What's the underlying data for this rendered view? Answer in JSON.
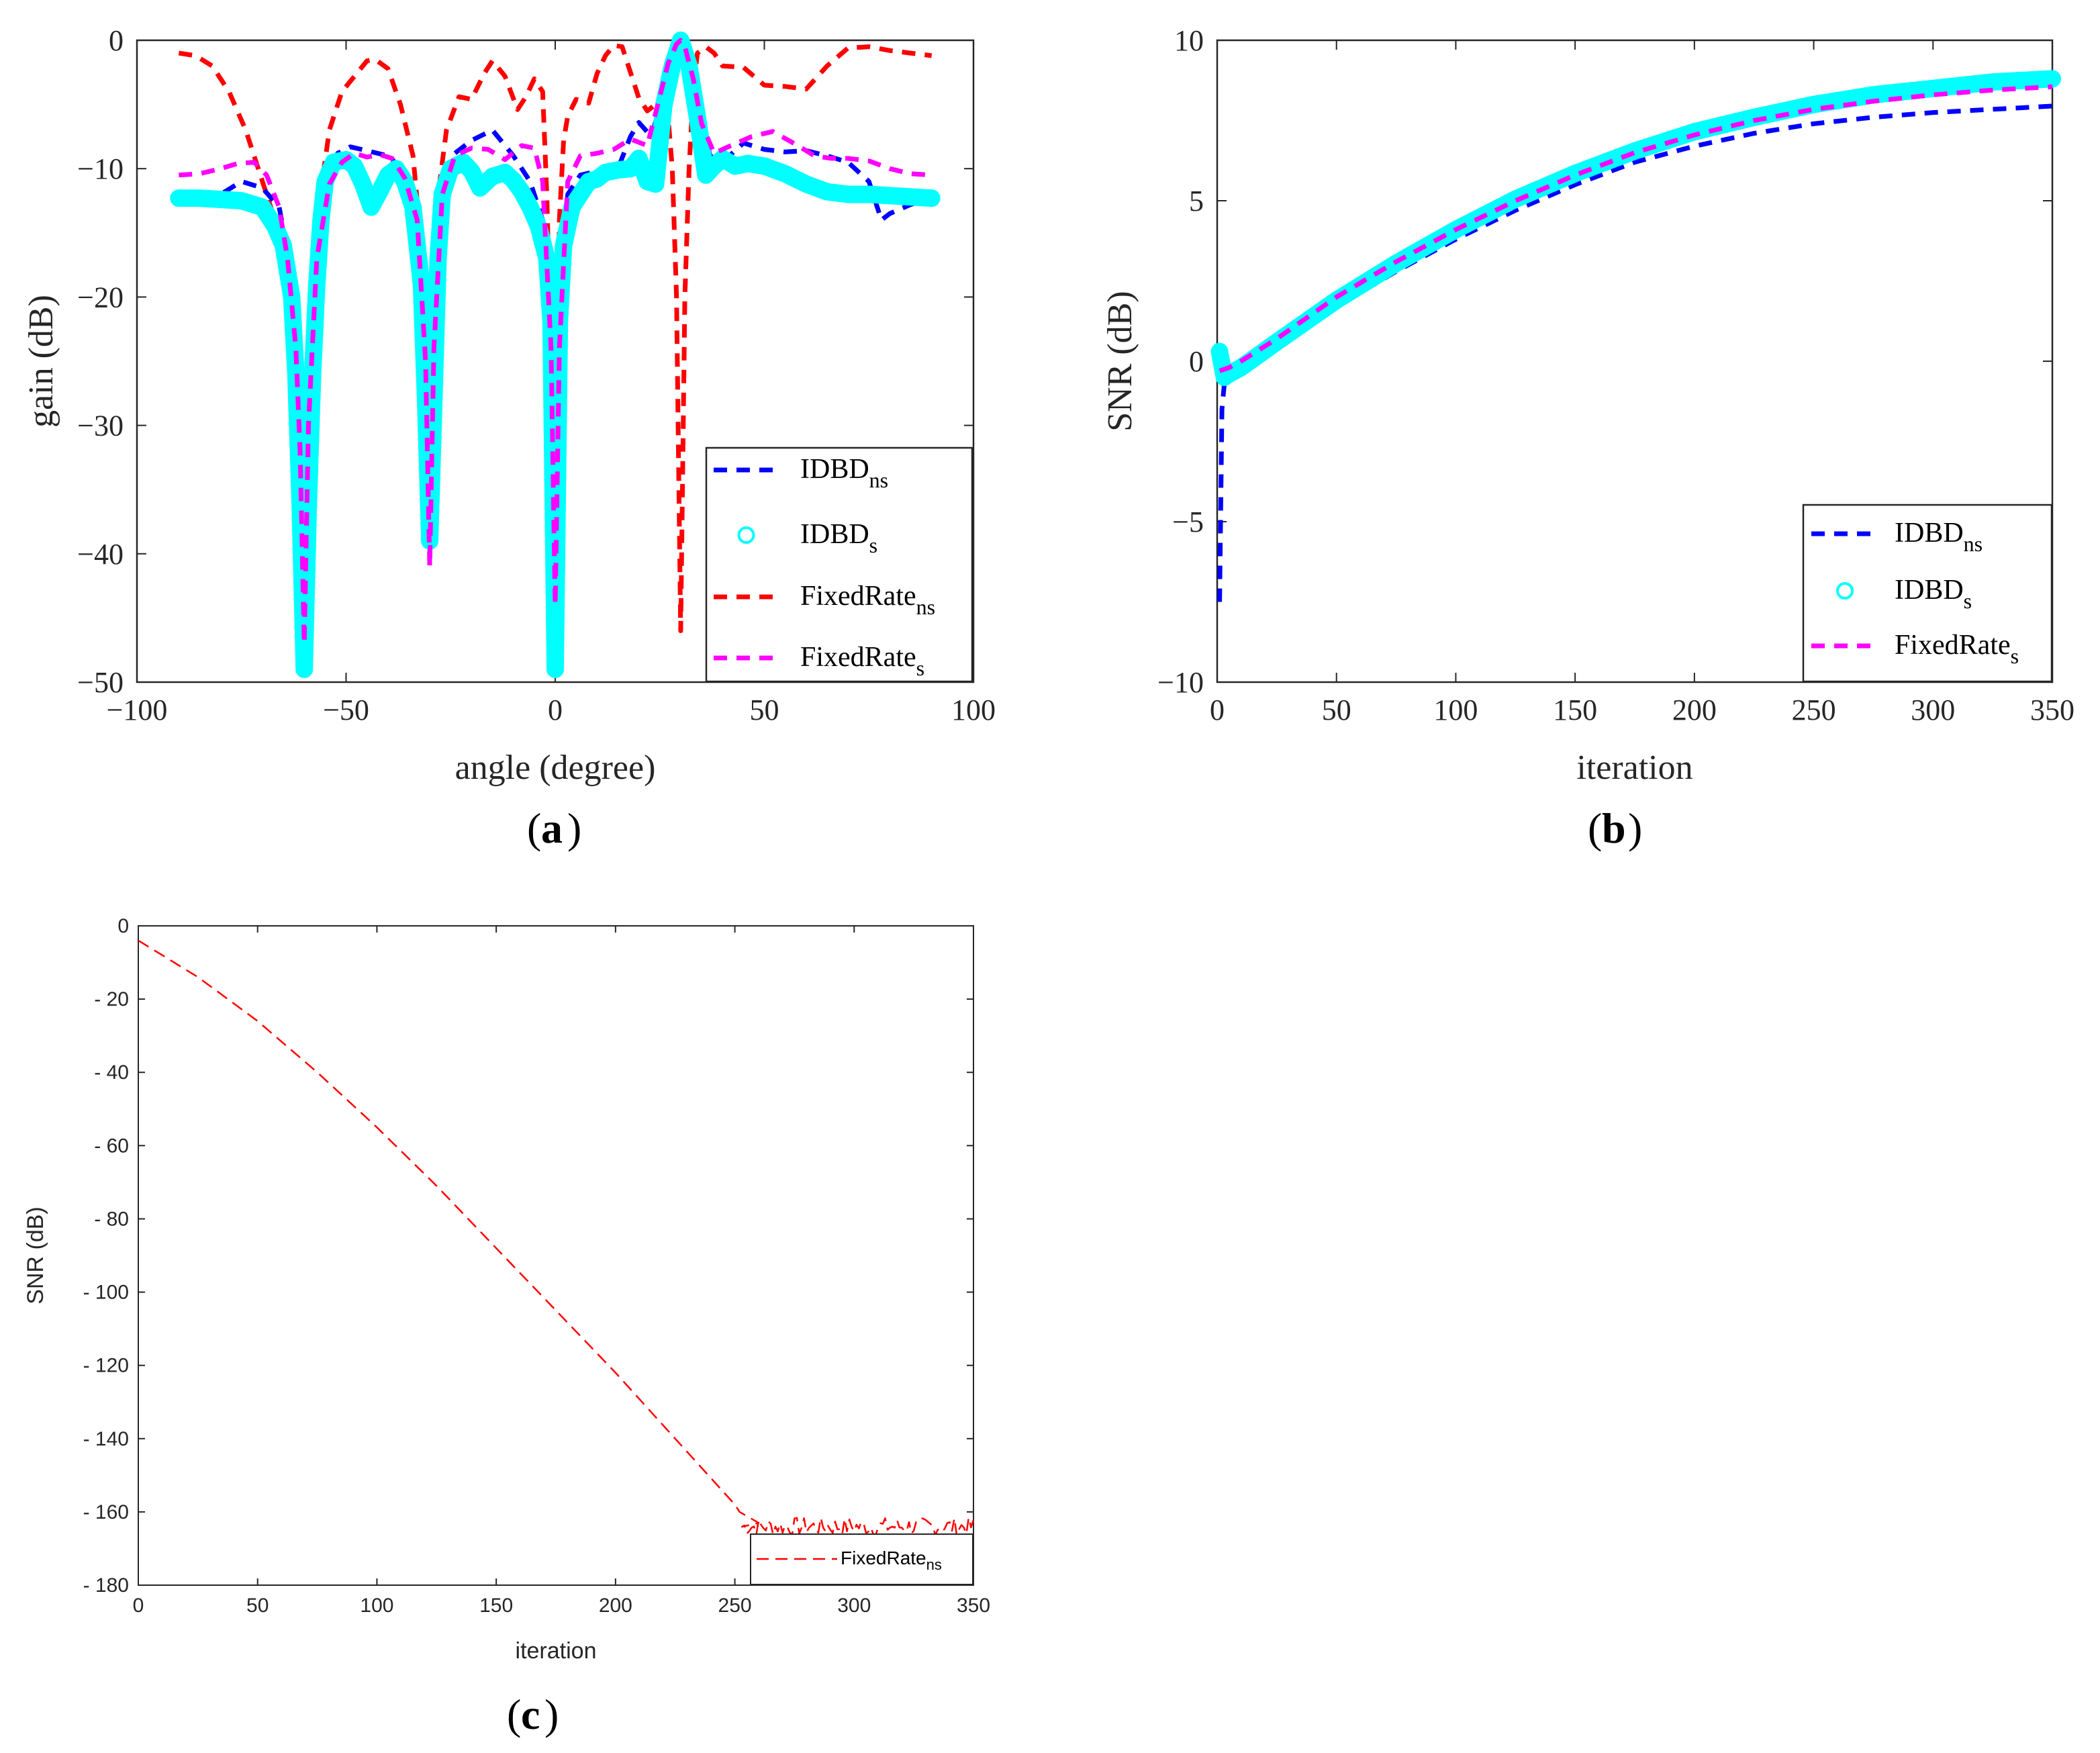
{
  "chart_data": [
    {
      "id": "a",
      "panel_label": "a",
      "type": "line",
      "xlabel": "angle (degree)",
      "ylabel": "gain (dB)",
      "xlim": [
        -100,
        100
      ],
      "ylim": [
        -50,
        0
      ],
      "xticks": [
        "−100",
        "−50",
        "0",
        "50",
        "100"
      ],
      "xtick_values": [
        -100,
        -50,
        0,
        50,
        100
      ],
      "yticks": [
        "0",
        "−10",
        "−20",
        "−30",
        "−40",
        "−50"
      ],
      "ytick_values": [
        0,
        -10,
        -20,
        -30,
        -40,
        -50
      ],
      "legend_position": "bottom-right",
      "series": [
        {
          "name": "IDBD",
          "sub": "ns",
          "color": "#0000ff",
          "style": "dashed",
          "x": [
            -90,
            -80,
            -75,
            -70,
            -66,
            -63,
            -61,
            -60,
            -59,
            -57,
            -55,
            -52,
            -49,
            -45,
            -40,
            -36,
            -33,
            -31,
            -30,
            -29,
            -27,
            -24,
            -20,
            -15,
            -10,
            -6,
            -3,
            -1,
            0,
            1,
            3,
            6,
            10,
            15,
            18,
            20,
            23,
            26,
            28,
            30,
            32,
            34,
            37,
            40,
            45,
            50,
            55,
            60,
            65,
            70,
            75,
            78,
            80,
            85,
            90
          ],
          "y": [
            -12.3,
            -12,
            -11,
            -11.5,
            -13,
            -18,
            -28,
            -44,
            -28,
            -16,
            -11,
            -8.8,
            -8.3,
            -8.6,
            -9,
            -10.2,
            -13.5,
            -24,
            -38,
            -22,
            -12,
            -8.8,
            -7.8,
            -7,
            -9,
            -11,
            -14,
            -22,
            -42,
            -22,
            -12,
            -10.5,
            -10.2,
            -10,
            -7.5,
            -6.4,
            -7.5,
            -4,
            -1.5,
            -0.2,
            -1.5,
            -4,
            -9,
            -9.5,
            -8,
            -8.5,
            -8.7,
            -8.6,
            -9,
            -9.5,
            -11,
            -14,
            -13.5,
            -12.8,
            -12.3
          ]
        },
        {
          "name": "IDBD",
          "sub": "s",
          "color": "#00ffff",
          "style": "markers",
          "x": [
            -90,
            -85,
            -80,
            -75,
            -70,
            -67,
            -65,
            -63,
            -62,
            -61,
            -60,
            -59,
            -58,
            -57,
            -56,
            -55,
            -53,
            -50,
            -48,
            -46,
            -44,
            -42,
            -40,
            -38,
            -36,
            -34,
            -32,
            -31,
            -30,
            -29,
            -28,
            -27,
            -25,
            -22,
            -20,
            -18,
            -15,
            -12,
            -10,
            -8,
            -6,
            -4,
            -2,
            -1,
            0,
            1,
            2,
            4,
            6,
            8,
            10,
            12,
            15,
            18,
            20,
            22,
            24,
            26,
            28,
            30,
            32,
            34,
            36,
            38,
            40,
            43,
            46,
            50,
            55,
            60,
            65,
            70,
            75,
            80,
            85,
            90
          ],
          "y": [
            -12.3,
            -12.3,
            -12.4,
            -12.5,
            -13,
            -14.5,
            -16,
            -20,
            -26,
            -36,
            -49,
            -36,
            -26,
            -19,
            -14,
            -11,
            -9.5,
            -9.3,
            -9.8,
            -11.2,
            -13,
            -11.8,
            -10.5,
            -10,
            -11,
            -13,
            -19,
            -28,
            -39,
            -28,
            -17,
            -12,
            -10,
            -9.5,
            -10.2,
            -11.5,
            -10.6,
            -10.3,
            -10.9,
            -11.8,
            -13,
            -14.5,
            -17,
            -22,
            -49,
            -22,
            -16,
            -13,
            -12,
            -11,
            -10.8,
            -10.3,
            -10.1,
            -10,
            -9.2,
            -11,
            -11.2,
            -5,
            -2,
            0,
            -2,
            -6,
            -10.5,
            -9.8,
            -9.2,
            -9.8,
            -9.6,
            -9.8,
            -10.4,
            -11.2,
            -11.8,
            -12,
            -12,
            -12.1,
            -12.2,
            -12.3
          ]
        },
        {
          "name": "FixedRate",
          "sub": "ns",
          "color": "#ff0000",
          "style": "dashed",
          "x": [
            -90,
            -86,
            -82,
            -78,
            -74,
            -70,
            -67,
            -65,
            -63,
            -61,
            -60,
            -59,
            -57,
            -54,
            -51,
            -48,
            -45,
            -43,
            -40,
            -37,
            -34,
            -32,
            -31,
            -30,
            -29,
            -28,
            -26,
            -23,
            -20,
            -17,
            -15,
            -12,
            -9,
            -7,
            -5,
            -3,
            -2,
            -1,
            0,
            1,
            2,
            3,
            5,
            8,
            10,
            12,
            14,
            16,
            18,
            20,
            22,
            24,
            26,
            27,
            28,
            29,
            30,
            31,
            32,
            33,
            34,
            36,
            38,
            40,
            45,
            50,
            55,
            60,
            65,
            70,
            75,
            80,
            85,
            90
          ],
          "y": [
            -1,
            -1.2,
            -2,
            -4,
            -7,
            -11,
            -14,
            -18,
            -24,
            -36,
            -46,
            -30,
            -14,
            -7,
            -4,
            -2.8,
            -1.6,
            -1.5,
            -2.2,
            -5,
            -9,
            -16,
            -28,
            -40,
            -24,
            -12,
            -7,
            -4.4,
            -4.6,
            -2.6,
            -1.6,
            -2.8,
            -5.4,
            -4.4,
            -3,
            -4,
            -12,
            -25,
            -40,
            -14,
            -7.8,
            -5.9,
            -4.6,
            -4.9,
            -2.6,
            -1.2,
            -0.4,
            -0.5,
            -2.5,
            -4.5,
            -5.5,
            -5,
            -3.9,
            -6,
            -10,
            -20,
            -46,
            -20,
            -10,
            -3.8,
            -1,
            -0.5,
            -1,
            -2,
            -2.1,
            -3.5,
            -3.6,
            -3.8,
            -2,
            -0.6,
            -0.5,
            -0.8,
            -1,
            -1.2
          ]
        },
        {
          "name": "FixedRate",
          "sub": "s",
          "color": "#ff00ff",
          "style": "dashed",
          "x": [
            -90,
            -85,
            -80,
            -76,
            -72,
            -69,
            -66,
            -64,
            -62,
            -61,
            -60,
            -59,
            -57,
            -54,
            -51,
            -48,
            -45,
            -42,
            -39,
            -36,
            -33,
            -31,
            -30,
            -29,
            -27,
            -24,
            -20,
            -16,
            -12,
            -8,
            -5,
            -3,
            -1,
            0,
            1,
            3,
            6,
            10,
            14,
            18,
            22,
            25,
            27,
            29,
            30,
            31,
            33,
            35,
            38,
            42,
            47,
            52,
            58,
            62,
            66,
            70,
            75,
            80,
            85,
            90
          ],
          "y": [
            -10.5,
            -10.4,
            -10,
            -9.6,
            -9.5,
            -10.5,
            -13,
            -17,
            -24,
            -32,
            -47,
            -30,
            -17,
            -11.2,
            -9.5,
            -8.8,
            -9.1,
            -8.9,
            -9.2,
            -10.7,
            -14,
            -25,
            -41,
            -24,
            -12,
            -9,
            -8.4,
            -8.5,
            -9.3,
            -8.2,
            -8.4,
            -11,
            -24,
            -44,
            -24,
            -11,
            -9,
            -8.8,
            -8.5,
            -7.7,
            -8.2,
            -4.4,
            -1.8,
            -0.3,
            0,
            -0.5,
            -3,
            -6.5,
            -8.8,
            -8.2,
            -7.5,
            -7.1,
            -8.2,
            -9,
            -9.2,
            -9.2,
            -9.4,
            -10,
            -10.4,
            -10.5
          ]
        }
      ]
    },
    {
      "id": "b",
      "panel_label": "b",
      "type": "line",
      "xlabel": "iteration",
      "ylabel": "SNR (dB)",
      "xlim": [
        0,
        350
      ],
      "ylim": [
        -10,
        10
      ],
      "xticks": [
        "0",
        "50",
        "100",
        "150",
        "200",
        "250",
        "300",
        "350"
      ],
      "xtick_values": [
        0,
        50,
        100,
        150,
        200,
        250,
        300,
        350
      ],
      "yticks": [
        "10",
        "5",
        "0",
        "−5",
        "−10"
      ],
      "ytick_values": [
        10,
        5,
        0,
        -5,
        -10
      ],
      "legend_position": "bottom-right",
      "series": [
        {
          "name": "IDBD",
          "sub": "ns",
          "color": "#0000ff",
          "style": "dashed",
          "x": [
            1,
            2,
            3,
            5,
            10,
            25,
            50,
            75,
            100,
            125,
            150,
            175,
            200,
            225,
            250,
            275,
            300,
            325,
            350
          ],
          "y": [
            -7.5,
            -1.5,
            -0.7,
            -0.5,
            -0.3,
            0.4,
            1.7,
            2.8,
            3.8,
            4.7,
            5.5,
            6.2,
            6.7,
            7.1,
            7.4,
            7.6,
            7.75,
            7.85,
            7.95
          ]
        },
        {
          "name": "IDBD",
          "sub": "s",
          "color": "#00ffff",
          "style": "markers",
          "x": [
            1,
            3,
            5,
            10,
            25,
            50,
            75,
            100,
            125,
            150,
            175,
            200,
            225,
            250,
            275,
            300,
            325,
            350
          ],
          "y": [
            0.3,
            -0.5,
            -0.4,
            -0.2,
            0.6,
            1.9,
            3.05,
            4.1,
            5.05,
            5.85,
            6.55,
            7.15,
            7.6,
            8,
            8.3,
            8.5,
            8.7,
            8.8
          ]
        },
        {
          "name": "FixedRate",
          "sub": "s",
          "color": "#ff00ff",
          "style": "dashed",
          "x": [
            1,
            5,
            10,
            25,
            50,
            75,
            100,
            125,
            150,
            175,
            200,
            225,
            250,
            275,
            300,
            325,
            350
          ],
          "y": [
            -0.3,
            -0.2,
            0,
            0.7,
            2,
            3.1,
            4.1,
            5,
            5.8,
            6.5,
            7.05,
            7.5,
            7.85,
            8.1,
            8.3,
            8.45,
            8.55
          ]
        }
      ]
    },
    {
      "id": "c",
      "panel_label": "c",
      "type": "line",
      "xlabel": "iteration",
      "ylabel": "SNR (dB)",
      "xlim": [
        0,
        350
      ],
      "ylim": [
        -180,
        0
      ],
      "xticks": [
        "0",
        "50",
        "100",
        "150",
        "200",
        "250",
        "300",
        "350"
      ],
      "xtick_values": [
        0,
        50,
        100,
        150,
        200,
        250,
        300,
        350
      ],
      "yticks": [
        "0",
        "- 20",
        "- 40",
        "- 60",
        "- 80",
        "- 100",
        "- 120",
        "- 140",
        "- 160",
        "- 180"
      ],
      "ytick_values": [
        0,
        -20,
        -40,
        -60,
        -80,
        -100,
        -120,
        -140,
        -160,
        -180
      ],
      "legend_position": "bottom-right",
      "series": [
        {
          "name": "FixedRate",
          "sub": "ns",
          "color": "#ff0000",
          "style": "dashed",
          "x": [
            0,
            10,
            25,
            50,
            75,
            100,
            125,
            150,
            175,
            200,
            225,
            250,
            252,
            260
          ],
          "y": [
            -4,
            -8,
            -14,
            -26,
            -40,
            -55,
            -71,
            -88,
            -105,
            -122,
            -140,
            -158,
            -160,
            -163
          ],
          "noise_from": 252,
          "noise_to": 350,
          "noise_center": -164,
          "noise_amp": 2.5
        }
      ]
    }
  ]
}
